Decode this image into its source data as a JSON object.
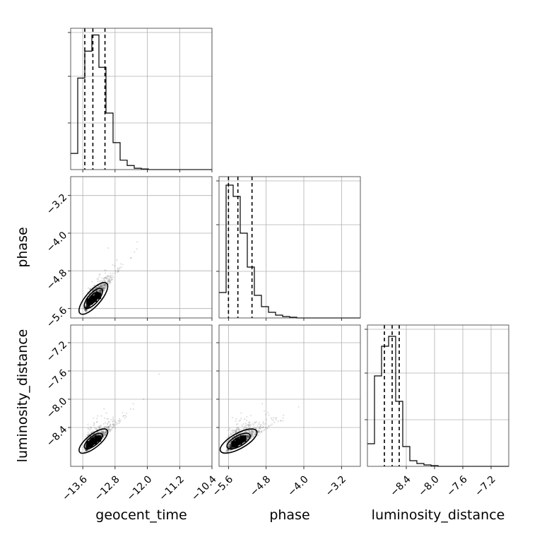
{
  "chart_data": {
    "type": "corner",
    "parameters": [
      "geocent_time",
      "phase",
      "luminosity_distance"
    ],
    "axes": {
      "geocent_time": {
        "label": "geocent_time",
        "range": [
          -13.9,
          -10.4
        ],
        "ticks": [
          -13.6,
          -12.8,
          -12.0,
          -11.2,
          -10.4
        ],
        "tick_labels": [
          "−13.6",
          "−12.8",
          "−12.0",
          "−11.2",
          "−10.4"
        ],
        "quantiles": [
          -13.55,
          -13.35,
          -13.05
        ]
      },
      "phase": {
        "label": "phase",
        "range": [
          -5.8,
          -2.8
        ],
        "ticks": [
          -5.6,
          -4.8,
          -4.0,
          -3.2
        ],
        "tick_labels": [
          "−5.6",
          "−4.8",
          "−4.0",
          "−3.2"
        ],
        "quantiles": [
          -5.6,
          -5.4,
          -5.1
        ]
      },
      "luminosity_distance": {
        "label": "luminosity_distance",
        "range": [
          -8.95,
          -6.95
        ],
        "ticks": [
          -8.4,
          -8.0,
          -7.6,
          -7.2
        ],
        "tick_labels": [
          "−8.4",
          "−8.0",
          "−7.6",
          "−7.2"
        ],
        "quantiles": [
          -8.71,
          -8.6,
          -8.5
        ]
      }
    },
    "histograms": {
      "geocent_time": {
        "bin_start": -13.9,
        "bin_width": 0.175,
        "counts": [
          0.12,
          0.68,
          0.88,
          1.0,
          0.76,
          0.42,
          0.2,
          0.07,
          0.03,
          0.01,
          0.005,
          0,
          0,
          0,
          0,
          0,
          0,
          0,
          0,
          0
        ],
        "ylim": [
          0,
          1.05
        ]
      },
      "phase": {
        "bin_start": -5.8,
        "bin_width": 0.15,
        "counts": [
          0.18,
          0.94,
          0.86,
          0.6,
          0.36,
          0.16,
          0.08,
          0.04,
          0.02,
          0.01,
          0.005,
          0,
          0,
          0,
          0,
          0,
          0,
          0,
          0,
          0
        ],
        "ylim": [
          0,
          1.0
        ]
      },
      "luminosity_distance": {
        "bin_start": -8.95,
        "bin_width": 0.1,
        "counts": [
          0.16,
          0.64,
          0.85,
          0.92,
          0.46,
          0.14,
          0.04,
          0.02,
          0.01,
          0.005,
          0,
          0,
          0,
          0,
          0,
          0,
          0,
          0,
          0,
          0
        ],
        "ylim": [
          0,
          1.0
        ]
      }
    },
    "samples_2d": {
      "phase_vs_geocent_time": {
        "correlation": 0.85,
        "mean": [
          -13.35,
          -5.4
        ],
        "std": [
          0.26,
          0.3
        ],
        "count": 1200
      },
      "luminosity_distance_vs_geocent_time": {
        "correlation": 0.75,
        "mean": [
          -13.35,
          -8.6
        ],
        "std": [
          0.26,
          0.16
        ],
        "count": 1200
      },
      "luminosity_distance_vs_phase": {
        "correlation": 0.7,
        "mean": [
          -5.4,
          -8.6
        ],
        "std": [
          0.3,
          0.16
        ],
        "count": 1200
      }
    },
    "grid": true
  }
}
